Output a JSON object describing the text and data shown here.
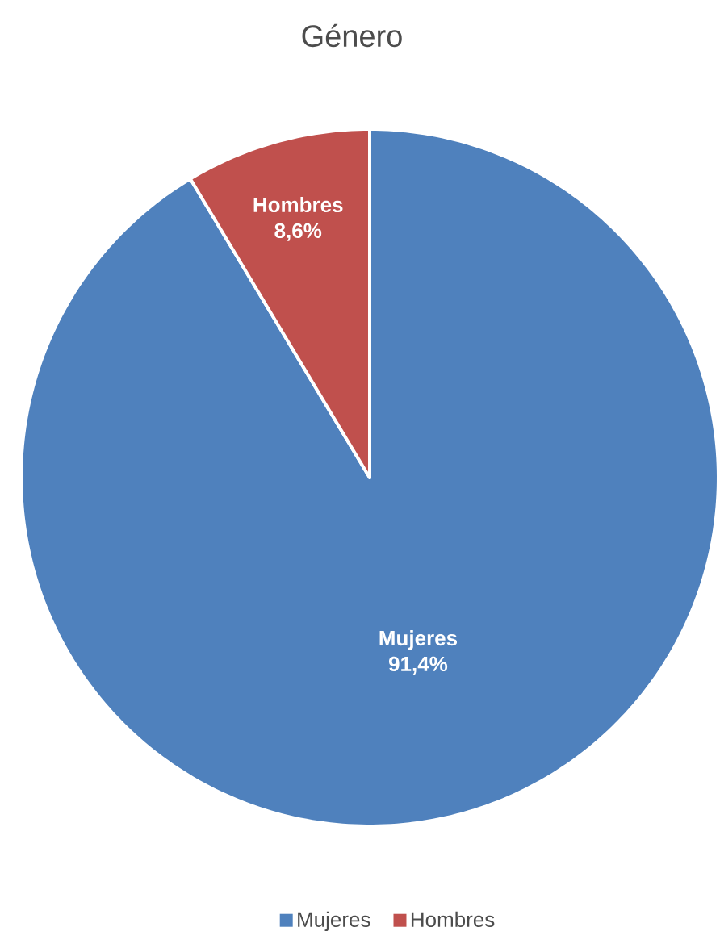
{
  "chart_data": {
    "type": "pie",
    "title": "Género",
    "categories": [
      "Mujeres",
      "Hombres"
    ],
    "values": [
      91.4,
      8.6
    ],
    "colors": [
      "#4f81bd",
      "#c0504d"
    ],
    "value_labels": [
      "91,4%",
      "8,6%"
    ],
    "legend": "bottom"
  }
}
